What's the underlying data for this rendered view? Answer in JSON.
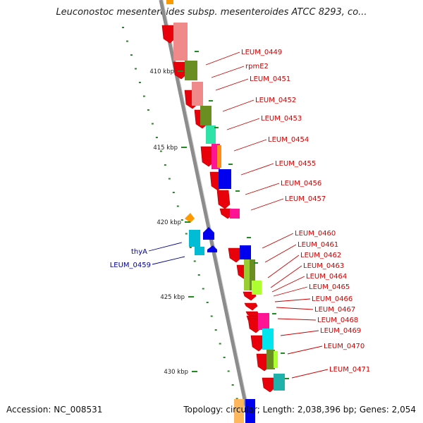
{
  "title": "Leuconostoc mesenteroides subsp. mesenteroides ATCC 8293, co...",
  "footer": {
    "accession": "Accession: NC_008531",
    "summary": "Topology: circular; Length: 2,038,396 bp; Genes: 2,054"
  },
  "colors": {
    "backbone": "#8c8c8c",
    "tick": "#228b22",
    "label_red": "#cc0000",
    "label_blue": "#00008b"
  },
  "kbp_ticks": [
    "410 kbp",
    "415 kbp",
    "420 kbp",
    "425 kbp",
    "430 kbp"
  ],
  "right_labels": [
    "LEUM_0449",
    "rpmE2",
    "LEUM_0451",
    "LEUM_0452",
    "LEUM_0453",
    "LEUM_0454",
    "LEUM_0455",
    "LEUM_0456",
    "LEUM_0457",
    "LEUM_0460",
    "LEUM_0461",
    "LEUM_0462",
    "LEUM_0463",
    "LEUM_0464",
    "LEUM_0465",
    "LEUM_0466",
    "LEUM_0467",
    "LEUM_0468",
    "LEUM_0469",
    "LEUM_0470",
    "LEUM_0471"
  ],
  "left_labels": [
    "thyA",
    "LEUM_0459"
  ]
}
